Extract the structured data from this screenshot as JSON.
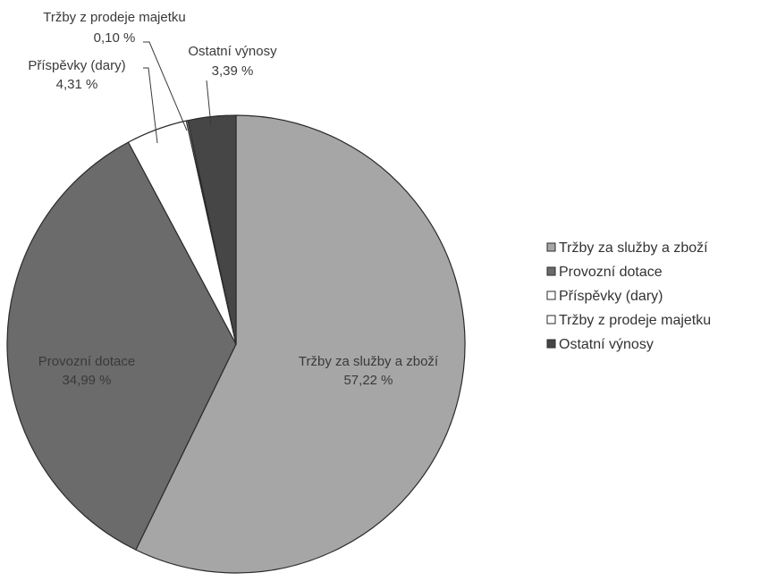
{
  "chart_data": {
    "type": "pie",
    "title": "",
    "legend_position": "right",
    "slices": [
      {
        "name": "Tržby za služby a zboží",
        "value": 57.22,
        "value_label": "57,22 %",
        "color": "#a6a6a6"
      },
      {
        "name": "Provozní dotace",
        "value": 34.99,
        "value_label": "34,99 %",
        "color": "#6b6b6b"
      },
      {
        "name": "Příspěvky (dary)",
        "value": 4.31,
        "value_label": "4,31 %",
        "color": "#ffffff"
      },
      {
        "name": "Tržby z prodeje majetku",
        "value": 0.1,
        "value_label": "0,10 %",
        "color": "#ffffff"
      },
      {
        "name": "Ostatní výnosy",
        "value": 3.39,
        "value_label": "3,39 %",
        "color": "#464646"
      }
    ]
  }
}
